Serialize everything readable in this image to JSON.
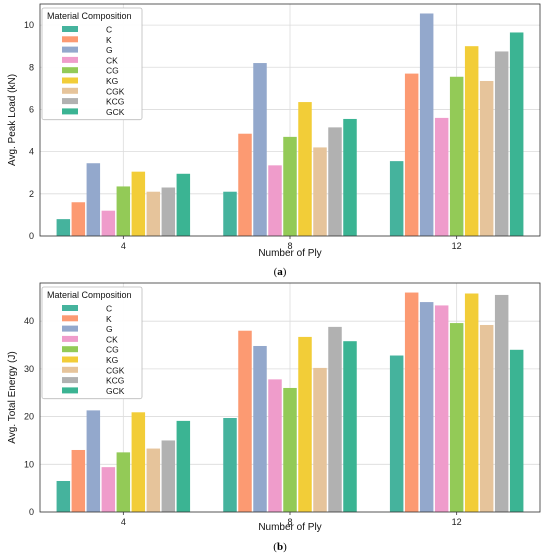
{
  "colors": [
    "#45b39d",
    "#fc9a72",
    "#93a8cc",
    "#ef9ccb",
    "#93ca57",
    "#f2cd38",
    "#e6c49b",
    "#b1b1b1",
    "#3bb493"
  ],
  "legend": {
    "title": "Material Composition",
    "labels": [
      "C",
      "K",
      "G",
      "CK",
      "CG",
      "KG",
      "CGK",
      "KCG",
      "GCK"
    ]
  },
  "chart_data": [
    {
      "type": "bar",
      "panel_label": "(a)",
      "panel_letter": "a",
      "title": "",
      "xlabel": "Number of Ply",
      "ylabel": "Avg. Peak Load (kN)",
      "categories": [
        "4",
        "8",
        "12"
      ],
      "ylim": [
        0,
        11
      ],
      "yticks": [
        0,
        2,
        4,
        6,
        8,
        10
      ],
      "grid": true,
      "legend_position": "top-left",
      "series": [
        {
          "name": "C",
          "values": [
            0.8,
            2.1,
            3.55
          ]
        },
        {
          "name": "K",
          "values": [
            1.6,
            4.85,
            7.7
          ]
        },
        {
          "name": "G",
          "values": [
            3.45,
            8.2,
            10.55
          ]
        },
        {
          "name": "CK",
          "values": [
            1.2,
            3.35,
            5.6
          ]
        },
        {
          "name": "CG",
          "values": [
            2.35,
            4.7,
            7.55
          ]
        },
        {
          "name": "KG",
          "values": [
            3.05,
            6.35,
            9.0
          ]
        },
        {
          "name": "CGK",
          "values": [
            2.1,
            4.2,
            7.35
          ]
        },
        {
          "name": "KCG",
          "values": [
            2.3,
            5.15,
            8.75
          ]
        },
        {
          "name": "GCK",
          "values": [
            2.95,
            5.55,
            9.65
          ]
        }
      ]
    },
    {
      "type": "bar",
      "panel_label": "(b)",
      "panel_letter": "b",
      "title": "",
      "xlabel": "Number of Ply",
      "ylabel": "Avg. Total Energy (J)",
      "categories": [
        "4",
        "8",
        "12"
      ],
      "ylim": [
        0,
        48
      ],
      "yticks": [
        0,
        10,
        20,
        30,
        40
      ],
      "grid": true,
      "legend_position": "top-left",
      "series": [
        {
          "name": "C",
          "values": [
            6.5,
            19.7,
            32.8
          ]
        },
        {
          "name": "K",
          "values": [
            13.0,
            38.0,
            46.0
          ]
        },
        {
          "name": "G",
          "values": [
            21.3,
            34.8,
            44.0
          ]
        },
        {
          "name": "CK",
          "values": [
            9.4,
            27.8,
            43.3
          ]
        },
        {
          "name": "CG",
          "values": [
            12.5,
            26.0,
            39.6
          ]
        },
        {
          "name": "KG",
          "values": [
            20.9,
            36.7,
            45.8
          ]
        },
        {
          "name": "CGK",
          "values": [
            13.3,
            30.2,
            39.2
          ]
        },
        {
          "name": "KCG",
          "values": [
            15.0,
            38.8,
            45.5
          ]
        },
        {
          "name": "GCK",
          "values": [
            19.1,
            35.8,
            34.0
          ]
        }
      ]
    }
  ]
}
